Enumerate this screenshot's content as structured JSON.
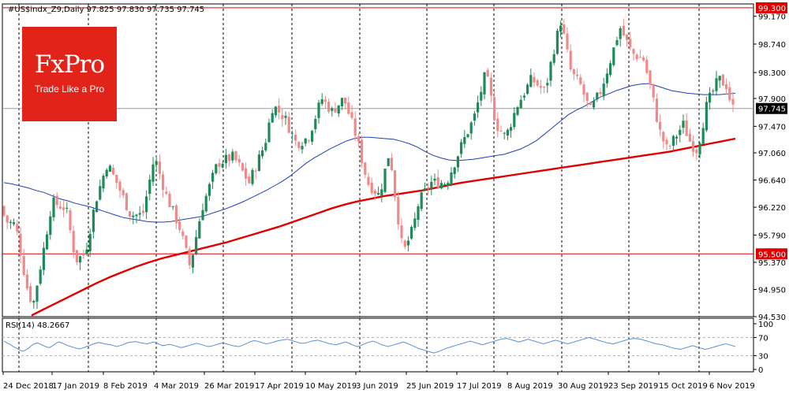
{
  "chart_data": {
    "type": "candlestick",
    "title": "#US$indx_Z9,Daily",
    "ohlc_label": "97.825 97.830 97.735 97.745",
    "last_price": "97.745",
    "levels": [
      {
        "label": "99.300",
        "value": 99.3,
        "color": "#e00000"
      },
      {
        "label": "95.500",
        "value": 95.5,
        "color": "#e00000"
      }
    ],
    "price_axis": {
      "min": 94.53,
      "max": 99.36,
      "ticks": [
        "99.170",
        "98.740",
        "98.300",
        "97.900",
        "97.470",
        "97.060",
        "96.640",
        "96.220",
        "95.790",
        "95.370",
        "94.950",
        "94.530"
      ]
    },
    "date_labels": [
      "24 Dec 2018",
      "17 Jan 2019",
      "8 Feb 2019",
      "4 Mar 2019",
      "26 Mar 2019",
      "17 Apr 2019",
      "10 May 2019",
      "3 Jun 2019",
      "25 Jun 2019",
      "17 Jul 2019",
      "8 Aug 2019",
      "30 Aug 2019",
      "23 Sep 2019",
      "15 Oct 2019",
      "6 Nov 2019"
    ],
    "rsi": {
      "label": "RSI(14) 48.2667",
      "ticks": [
        "100",
        "70",
        "30",
        "0"
      ],
      "levels": [
        70,
        30
      ],
      "values": [
        62,
        58,
        55,
        50,
        47,
        43,
        40,
        42,
        46,
        52,
        56,
        58,
        55,
        52,
        49,
        48,
        52,
        57,
        60,
        58,
        55,
        52,
        50,
        48,
        46,
        45,
        47,
        50,
        52,
        55,
        57,
        59,
        58,
        56,
        55,
        54,
        52,
        50,
        52,
        54,
        57,
        59,
        60,
        61,
        60,
        58,
        57,
        56,
        58,
        60,
        58,
        55,
        52,
        53,
        55,
        54,
        52,
        50,
        48,
        49,
        51,
        53,
        55,
        57,
        56,
        54,
        52,
        50,
        51,
        53,
        55,
        57,
        58,
        56,
        54,
        52,
        51,
        50,
        52,
        55,
        58,
        61,
        63,
        62,
        60,
        58,
        56,
        57,
        59,
        61,
        63,
        64,
        65,
        66,
        64,
        62,
        60,
        58,
        57,
        58,
        60,
        62,
        63,
        64,
        62,
        60,
        58,
        56,
        55,
        54,
        56,
        58,
        60,
        58,
        55,
        52,
        50,
        52,
        55,
        58,
        60,
        62,
        60,
        57,
        54,
        52,
        50,
        52,
        54,
        56,
        58,
        60,
        58,
        55,
        52,
        49,
        46,
        44,
        42,
        40,
        38,
        36,
        38,
        40,
        43,
        46,
        48,
        50,
        52,
        54,
        56,
        58,
        60,
        62,
        60,
        58,
        56,
        54,
        56,
        58,
        60,
        62,
        64,
        66,
        67,
        68,
        66,
        64,
        62,
        60,
        62,
        64,
        66,
        64,
        62,
        60,
        58,
        56,
        58,
        60,
        62,
        64,
        62,
        60,
        58,
        56,
        58,
        60,
        62,
        64,
        66,
        68,
        70,
        68,
        66,
        64,
        62,
        60,
        58,
        57,
        56,
        58,
        60,
        62,
        64,
        66,
        67,
        68,
        67,
        66,
        64,
        62,
        60,
        58,
        56,
        55,
        54,
        52,
        50,
        48,
        46,
        45,
        44,
        46,
        48,
        50,
        52,
        50,
        48,
        46,
        44,
        45,
        47,
        49,
        51,
        53,
        55,
        56,
        54,
        52,
        50
      ],
      "color": "#5a8fd6"
    },
    "series": [
      {
        "name": "MA50",
        "color": "#1f3fb5",
        "values": [
          96.6,
          96.58,
          96.55,
          96.52,
          96.48,
          96.45,
          96.4,
          96.35,
          96.32,
          96.28,
          96.25,
          96.22,
          96.18,
          96.14,
          96.1,
          96.06,
          96.04,
          96.02,
          96.0,
          95.99,
          95.99,
          96.0,
          96.02,
          96.04,
          96.06,
          96.08,
          96.12,
          96.16,
          96.2,
          96.25,
          96.3,
          96.36,
          96.42,
          96.48,
          96.55,
          96.62,
          96.7,
          96.8,
          96.9,
          96.98,
          97.05,
          97.12,
          97.18,
          97.24,
          97.28,
          97.3,
          97.3,
          97.29,
          97.28,
          97.27,
          97.24,
          97.2,
          97.15,
          97.08,
          97.02,
          96.98,
          96.95,
          96.94,
          96.95,
          96.96,
          96.98,
          97.0,
          97.02,
          97.04,
          97.08,
          97.12,
          97.18,
          97.25,
          97.35,
          97.45,
          97.55,
          97.65,
          97.72,
          97.78,
          97.85,
          97.92,
          97.97,
          98.02,
          98.06,
          98.1,
          98.12,
          98.13,
          98.1,
          98.06,
          98.02,
          98.0,
          97.98,
          97.97,
          97.96,
          97.96,
          97.96,
          97.97,
          97.98
        ]
      },
      {
        "name": "MA200",
        "color": "#e00000",
        "values": [
          94.55,
          94.65,
          94.75,
          94.85,
          94.95,
          95.05,
          95.14,
          95.22,
          95.3,
          95.37,
          95.43,
          95.48,
          95.53,
          95.58,
          95.63,
          95.68,
          95.74,
          95.8,
          95.86,
          95.92,
          95.99,
          96.06,
          96.13,
          96.2,
          96.26,
          96.31,
          96.35,
          96.39,
          96.42,
          96.45,
          96.48,
          96.52,
          96.56,
          96.6,
          96.63,
          96.66,
          96.69,
          96.72,
          96.75,
          96.78,
          96.81,
          96.84,
          96.87,
          96.9,
          96.93,
          96.96,
          96.99,
          97.02,
          97.05,
          97.08,
          97.12,
          97.16,
          97.2,
          97.24,
          97.28
        ]
      }
    ],
    "candles_note": "daily OHLC candles, green = up, red = down"
  },
  "logo": {
    "name": "FxPro",
    "tagline": "Trade Like a Pro"
  }
}
